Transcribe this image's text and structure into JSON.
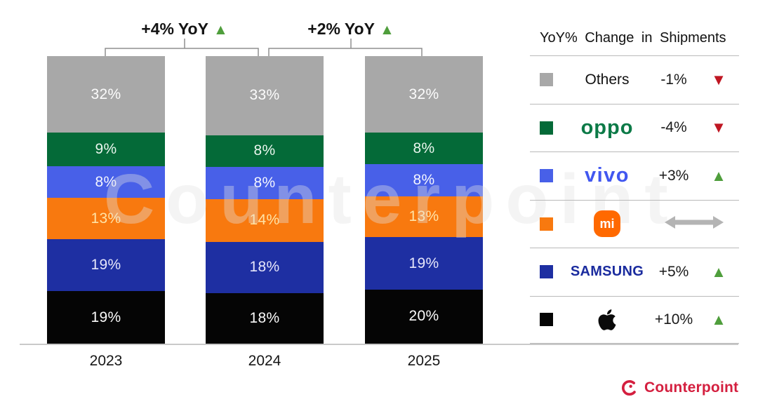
{
  "chart_data": {
    "type": "stacked-bar",
    "title": "",
    "categories": [
      "2023",
      "2024",
      "2025"
    ],
    "unit": "%",
    "series": [
      {
        "name": "Others",
        "color": "#a8a8a8",
        "label_color": "#fcfcfc",
        "values": [
          32,
          33,
          32
        ]
      },
      {
        "name": "OPPO",
        "color": "#046a38",
        "label_color": "#eaf6ee",
        "values": [
          9,
          8,
          8
        ]
      },
      {
        "name": "vivo",
        "color": "#4860e8",
        "label_color": "#f4f6ff",
        "values": [
          8,
          8,
          8
        ]
      },
      {
        "name": "Xiaomi",
        "color": "#f8790f",
        "label_color": "#ffe3a6",
        "values": [
          13,
          14,
          13
        ]
      },
      {
        "name": "Samsung",
        "color": "#1e2fa2",
        "label_color": "#e6e6fa",
        "values": [
          19,
          18,
          19
        ]
      },
      {
        "name": "Apple",
        "color": "#050505",
        "label_color": "#fafafa",
        "values": [
          19,
          18,
          20
        ]
      }
    ],
    "annotations": [
      {
        "label": "+4% YoY",
        "direction": "up",
        "between": [
          "2023",
          "2024"
        ]
      },
      {
        "label": "+2% YoY",
        "direction": "up",
        "between": [
          "2024",
          "2025"
        ]
      }
    ],
    "axis": {
      "baseline_visible": true,
      "gridlines": false,
      "value_labels_inside_bars": true
    }
  },
  "annotation_1": {
    "label": "+4% YoY",
    "arrow": "▲"
  },
  "annotation_2": {
    "label": "+2% YoY",
    "arrow": "▲"
  },
  "legend": {
    "title": "YoY% Change in Shipments",
    "rows": [
      {
        "brand": "Others",
        "logo_type": "text",
        "logo_text": "Others",
        "change": "-1%",
        "direction": "down"
      },
      {
        "brand": "OPPO",
        "logo_type": "wordmark-oppo",
        "logo_text": "oppo",
        "change": "-4%",
        "direction": "down"
      },
      {
        "brand": "vivo",
        "logo_type": "wordmark-vivo",
        "logo_text": "vivo",
        "change": "+3%",
        "direction": "up"
      },
      {
        "brand": "Xiaomi",
        "logo_type": "mi-badge",
        "logo_text": "mi",
        "change": "",
        "direction": "flat"
      },
      {
        "brand": "Samsung",
        "logo_type": "wordmark-samsung",
        "logo_text": "SAMSUNG",
        "change": "+5%",
        "direction": "up"
      },
      {
        "brand": "Apple",
        "logo_type": "apple-logo",
        "logo_text": "",
        "change": "+10%",
        "direction": "up"
      }
    ]
  },
  "colors": {
    "up_green": "#4f9e3c",
    "down_red": "#bf1622",
    "flat_gray": "#b4b4b4",
    "oppo_green": "#0c7a47",
    "vivo_blue": "#4157f0",
    "samsung_navy": "#1a2b9e",
    "xiaomi_orange": "#ff6900",
    "counterpoint_red": "#d41f3f"
  },
  "watermark": {
    "text": "Counterpoint"
  },
  "footer": {
    "brand": "Counterpoint"
  }
}
